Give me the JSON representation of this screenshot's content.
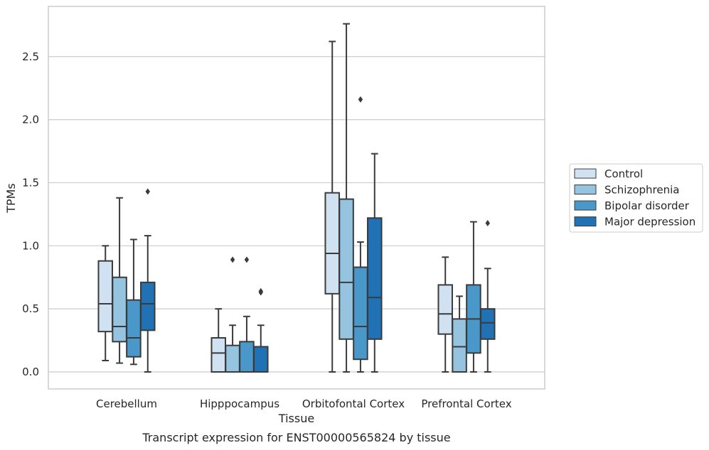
{
  "chart_data": {
    "type": "boxplot",
    "title": "",
    "caption": "Transcript expression for ENST00000565824 by tissue",
    "xlabel": "Tissue",
    "ylabel": "TPMs",
    "ylim": [
      -0.13,
      2.9
    ],
    "yticks": [
      0.0,
      0.5,
      1.0,
      1.5,
      2.0,
      2.5
    ],
    "ytick_labels": [
      "0.0",
      "0.5",
      "1.0",
      "1.5",
      "2.0",
      "2.5"
    ],
    "grid": "horizontal",
    "legend_position": "right",
    "categories": [
      "Cerebellum",
      "Hipppocampus",
      "Orbitofontal Cortex",
      "Prefrontal Cortex"
    ],
    "series": [
      {
        "name": "Control",
        "color": "#d0e1f2",
        "boxes": [
          {
            "whislo": 0.09,
            "q1": 0.32,
            "med": 0.54,
            "q3": 0.88,
            "whishi": 1.0,
            "fliers": []
          },
          {
            "whislo": 0.0,
            "q1": 0.0,
            "med": 0.15,
            "q3": 0.27,
            "whishi": 0.5,
            "fliers": []
          },
          {
            "whislo": 0.0,
            "q1": 0.62,
            "med": 0.94,
            "q3": 1.42,
            "whishi": 2.62,
            "fliers": []
          },
          {
            "whislo": 0.0,
            "q1": 0.3,
            "med": 0.46,
            "q3": 0.69,
            "whishi": 0.91,
            "fliers": []
          }
        ]
      },
      {
        "name": "Schizophrenia",
        "color": "#94c4df",
        "boxes": [
          {
            "whislo": 0.07,
            "q1": 0.24,
            "med": 0.36,
            "q3": 0.75,
            "whishi": 1.38,
            "fliers": []
          },
          {
            "whislo": 0.0,
            "q1": 0.0,
            "med": 0.0,
            "q3": 0.21,
            "whishi": 0.37,
            "fliers": [
              0.89
            ]
          },
          {
            "whislo": 0.0,
            "q1": 0.26,
            "med": 0.71,
            "q3": 1.37,
            "whishi": 2.76,
            "fliers": []
          },
          {
            "whislo": 0.0,
            "q1": 0.0,
            "med": 0.2,
            "q3": 0.42,
            "whishi": 0.6,
            "fliers": []
          }
        ]
      },
      {
        "name": "Bipolar disorder",
        "color": "#4a98c9",
        "boxes": [
          {
            "whislo": 0.06,
            "q1": 0.12,
            "med": 0.27,
            "q3": 0.57,
            "whishi": 1.05,
            "fliers": []
          },
          {
            "whislo": 0.0,
            "q1": 0.0,
            "med": 0.0,
            "q3": 0.24,
            "whishi": 0.44,
            "fliers": [
              0.89
            ]
          },
          {
            "whislo": 0.0,
            "q1": 0.1,
            "med": 0.36,
            "q3": 0.83,
            "whishi": 1.03,
            "fliers": [
              2.16
            ]
          },
          {
            "whislo": 0.0,
            "q1": 0.15,
            "med": 0.42,
            "q3": 0.69,
            "whishi": 1.19,
            "fliers": []
          }
        ]
      },
      {
        "name": "Major depression",
        "color": "#2171b5",
        "boxes": [
          {
            "whislo": 0.0,
            "q1": 0.33,
            "med": 0.54,
            "q3": 0.71,
            "whishi": 1.08,
            "fliers": [
              1.43
            ]
          },
          {
            "whislo": 0.0,
            "q1": 0.0,
            "med": 0.0,
            "q3": 0.2,
            "whishi": 0.37,
            "fliers": [
              0.63,
              0.64
            ]
          },
          {
            "whislo": 0.0,
            "q1": 0.26,
            "med": 0.59,
            "q3": 1.22,
            "whishi": 1.73,
            "fliers": []
          },
          {
            "whislo": 0.0,
            "q1": 0.26,
            "med": 0.39,
            "q3": 0.5,
            "whishi": 0.82,
            "fliers": [
              1.18
            ]
          }
        ]
      }
    ]
  }
}
